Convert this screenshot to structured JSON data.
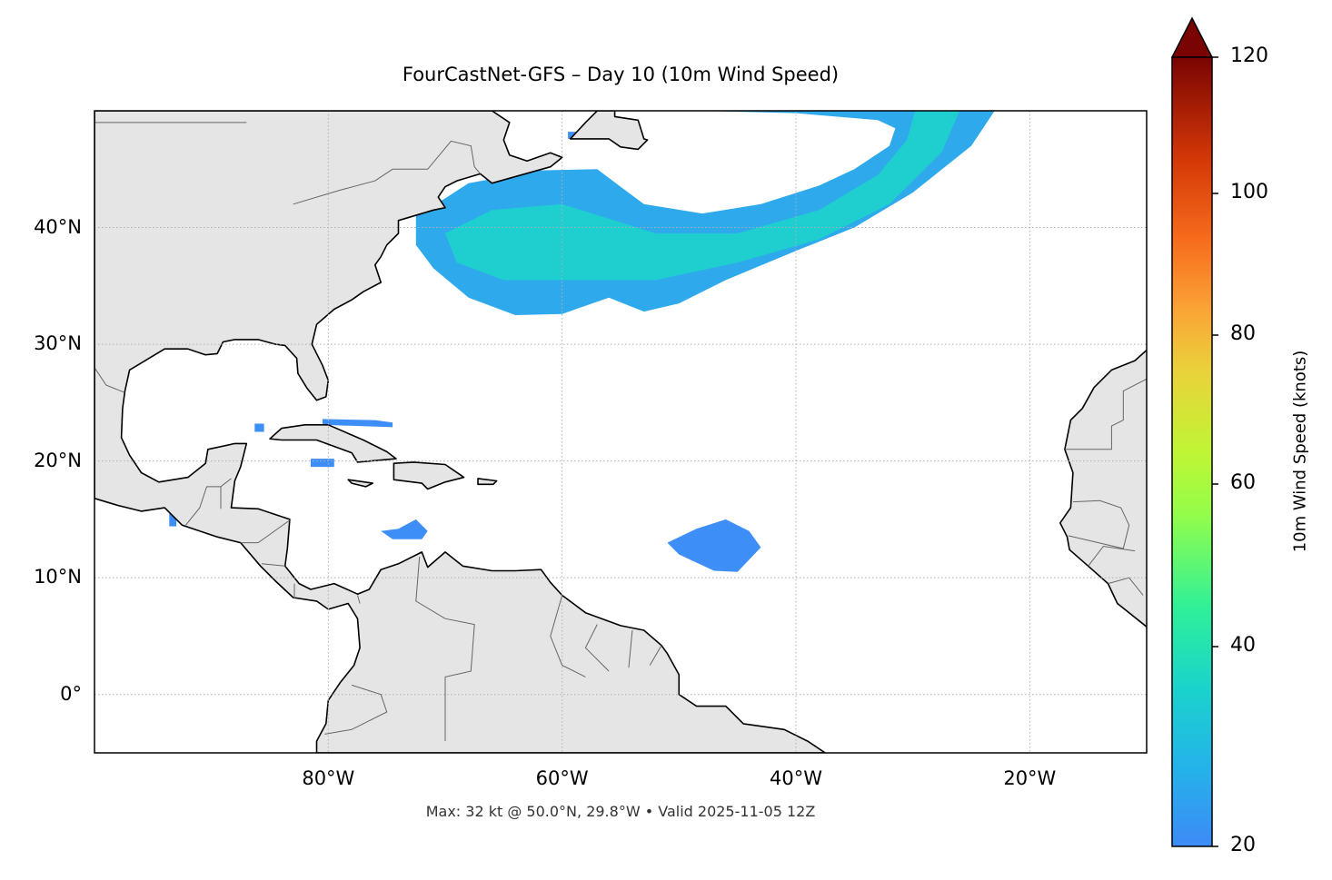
{
  "chart_data": {
    "type": "map",
    "title": "FourCastNet-GFS – Day 10 (10m Wind Speed)",
    "caption": "Max: 32 kt @ 50.0°N, 29.8°W • Valid 2025-11-05 12Z",
    "projection": "PlateCarree",
    "extent": {
      "lon": [
        -100,
        -10
      ],
      "lat": [
        -5,
        50
      ]
    },
    "grid": true,
    "x_ticks": [
      {
        "value": -80,
        "label": "80°W"
      },
      {
        "value": -60,
        "label": "60°W"
      },
      {
        "value": -40,
        "label": "40°W"
      },
      {
        "value": -20,
        "label": "20°W"
      }
    ],
    "y_ticks": [
      {
        "value": 40,
        "label": "40°N"
      },
      {
        "value": 30,
        "label": "30°N"
      },
      {
        "value": 20,
        "label": "20°N"
      },
      {
        "value": 10,
        "label": "10°N"
      },
      {
        "value": 0,
        "label": "0°"
      }
    ],
    "colorbar": {
      "label": "10m Wind Speed (knots)",
      "range": [
        20,
        120
      ],
      "extend": "max",
      "colormap": "turbo",
      "ticks": [
        {
          "value": 20,
          "label": "20"
        },
        {
          "value": 40,
          "label": "40"
        },
        {
          "value": 60,
          "label": "60"
        },
        {
          "value": 80,
          "label": "80"
        },
        {
          "value": 100,
          "label": "100"
        },
        {
          "value": 120,
          "label": "120"
        }
      ]
    },
    "land_color": "#e5e5e5",
    "wind_regions": [
      {
        "name": "north-atlantic-jet-band",
        "speed_kt": [
          20,
          32
        ],
        "polygon": [
          [
            -72.5,
            41
          ],
          [
            -70,
            42.5
          ],
          [
            -68,
            43.8
          ],
          [
            -62,
            44.9
          ],
          [
            -57,
            45
          ],
          [
            -55,
            43.5
          ],
          [
            -53,
            42
          ],
          [
            -48,
            41.2
          ],
          [
            -43,
            42
          ],
          [
            -38,
            43.6
          ],
          [
            -35,
            45
          ],
          [
            -32,
            47
          ],
          [
            -31.5,
            48.5
          ],
          [
            -33,
            49.2
          ],
          [
            -40,
            49.8
          ],
          [
            -48.3,
            50
          ],
          [
            -23,
            50
          ],
          [
            -25,
            47
          ],
          [
            -30,
            43
          ],
          [
            -35,
            40
          ],
          [
            -40,
            38
          ],
          [
            -46,
            35.5
          ],
          [
            -50,
            33.5
          ],
          [
            -53,
            32.8
          ],
          [
            -56,
            34
          ],
          [
            -60,
            32.6
          ],
          [
            -64,
            32.5
          ],
          [
            -68,
            34
          ],
          [
            -71,
            36.5
          ],
          [
            -72.5,
            38.5
          ]
        ]
      },
      {
        "name": "jet-core",
        "speed_kt": [
          28,
          32
        ],
        "polygon": [
          [
            -70,
            39.5
          ],
          [
            -66,
            41.5
          ],
          [
            -60,
            42
          ],
          [
            -52,
            39.5
          ],
          [
            -45,
            39.5
          ],
          [
            -38,
            41.5
          ],
          [
            -33,
            44.5
          ],
          [
            -30.5,
            47.5
          ],
          [
            -29.8,
            50
          ],
          [
            -26,
            50
          ],
          [
            -27.5,
            46.5
          ],
          [
            -32,
            42
          ],
          [
            -38,
            39
          ],
          [
            -45,
            37
          ],
          [
            -52,
            35.5
          ],
          [
            -58,
            35.5
          ],
          [
            -65,
            35.5
          ],
          [
            -69,
            37
          ]
        ]
      },
      {
        "name": "central-atlantic-blob",
        "speed_kt": [
          20,
          22
        ],
        "polygon": [
          [
            -51,
            13
          ],
          [
            -48.5,
            14.2
          ],
          [
            -46,
            15
          ],
          [
            -44,
            14
          ],
          [
            -43,
            12.6
          ],
          [
            -45,
            10.5
          ],
          [
            -47,
            10.6
          ],
          [
            -50,
            12
          ]
        ]
      },
      {
        "name": "caribbean-blob",
        "speed_kt": [
          20,
          22
        ],
        "polygon": [
          [
            -75.5,
            14
          ],
          [
            -74,
            14.2
          ],
          [
            -72.5,
            15
          ],
          [
            -71.5,
            14
          ],
          [
            -72,
            13.3
          ],
          [
            -74.5,
            13.3
          ]
        ]
      },
      {
        "name": "cuba-north-strip",
        "speed_kt": [
          20,
          21
        ],
        "polygon": [
          [
            -80.5,
            23.6
          ],
          [
            -76,
            23.5
          ],
          [
            -74.5,
            23.3
          ],
          [
            -74.5,
            22.9
          ],
          [
            -80.5,
            23.1
          ]
        ]
      },
      {
        "name": "cayman-patch",
        "speed_kt": [
          20,
          21
        ],
        "polygon": [
          [
            -81.5,
            20.2
          ],
          [
            -79.5,
            20.2
          ],
          [
            -79.5,
            19.5
          ],
          [
            -81.5,
            19.5
          ]
        ]
      },
      {
        "name": "yucatan-west-patch",
        "speed_kt": [
          20,
          21
        ],
        "polygon": [
          [
            -86.3,
            23.2
          ],
          [
            -85.5,
            23.2
          ],
          [
            -85.5,
            22.5
          ],
          [
            -86.3,
            22.5
          ]
        ]
      },
      {
        "name": "gulf-of-honduras-patch",
        "speed_kt": [
          20,
          21
        ],
        "polygon": [
          [
            -93.6,
            16.3
          ],
          [
            -93,
            16.3
          ],
          [
            -93,
            15.5
          ],
          [
            -93,
            14.4
          ],
          [
            -93.6,
            14.4
          ]
        ]
      },
      {
        "name": "newfoundland-patch",
        "speed_kt": [
          20,
          21
        ],
        "polygon": [
          [
            -59.5,
            48.2
          ],
          [
            -58.5,
            48.2
          ],
          [
            -58.5,
            47.6
          ],
          [
            -59.5,
            47.6
          ]
        ]
      }
    ]
  }
}
